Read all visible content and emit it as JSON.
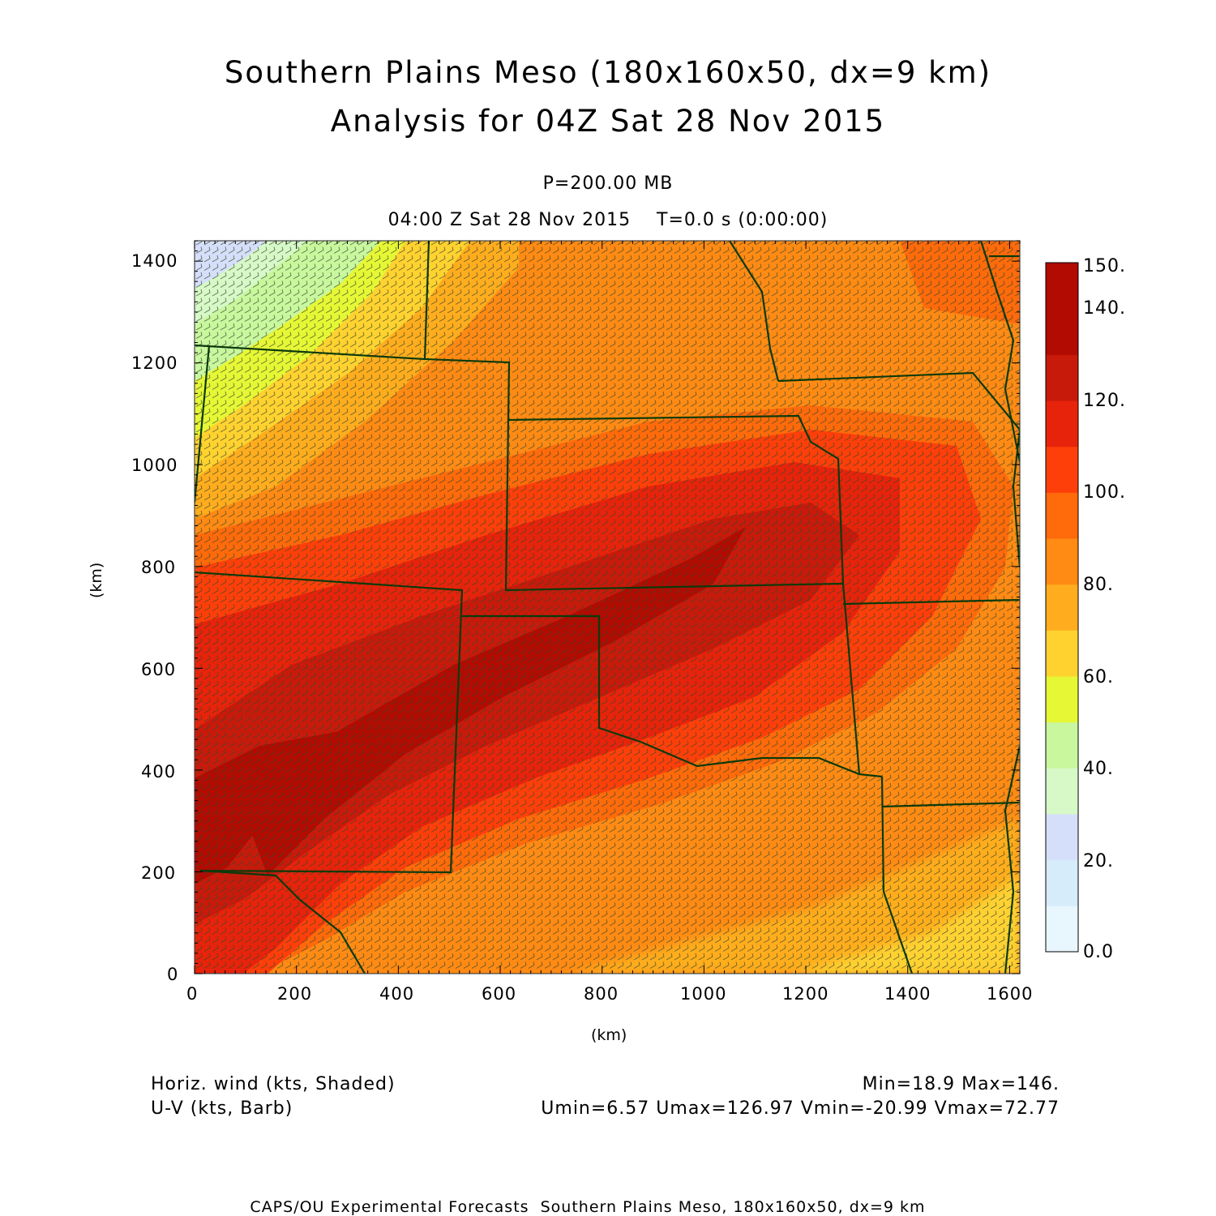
{
  "header": {
    "title_line1": "Southern Plains Meso (180x160x50, dx=9 km)",
    "title_line2": "Analysis for 04Z Sat 28 Nov 2015",
    "level": "P=200.00 MB",
    "time": "04:00 Z Sat 28 Nov 2015    T=0.0 s (0:00:00)"
  },
  "axes": {
    "xlabel": "(km)",
    "ylabel": "(km)",
    "xticks": [
      "0",
      "200",
      "400",
      "600",
      "800",
      "1000",
      "1200",
      "1400",
      "1600"
    ],
    "yticks": [
      "0",
      "200",
      "400",
      "600",
      "800",
      "1000",
      "1200",
      "1400"
    ],
    "xrange_km": [
      0,
      1620
    ],
    "yrange_km": [
      0,
      1440
    ]
  },
  "colorbar": {
    "labels": [
      "0.0",
      "20.",
      "40.",
      "60.",
      "80.",
      "100.",
      "120.",
      "140.",
      "150."
    ],
    "levels": [
      0,
      10,
      20,
      30,
      40,
      50,
      60,
      70,
      80,
      90,
      100,
      110,
      120,
      130,
      140,
      150
    ],
    "colors": [
      "#e8f6fd",
      "#d6ecfb",
      "#d5dffa",
      "#d6f9c7",
      "#c8f79e",
      "#e6f735",
      "#ffd230",
      "#ffad1e",
      "#ff8a14",
      "#ff6a0b",
      "#ff3f0a",
      "#e7230b",
      "#c81a0b",
      "#b10b02",
      "#b10b02"
    ]
  },
  "legend": {
    "field1": "Horiz. wind (kts, Shaded)",
    "field2": "U-V (kts, Barb)",
    "minmax": "Min=18.9 Max=146.",
    "uvstats": "Umin=6.57 Umax=126.97 Vmin=-20.99 Vmax=72.77"
  },
  "footer": "CAPS/OU Experimental Forecasts  Southern Plains Meso, 180x160x50, dx=9 km",
  "map": {
    "shading_note_colors": {
      "low": "#d5dffa",
      "mid": "#ffad1e",
      "high": "#b10b02"
    },
    "barb_color": "#3b4a2e",
    "border_color": "#0b3a0b"
  }
}
